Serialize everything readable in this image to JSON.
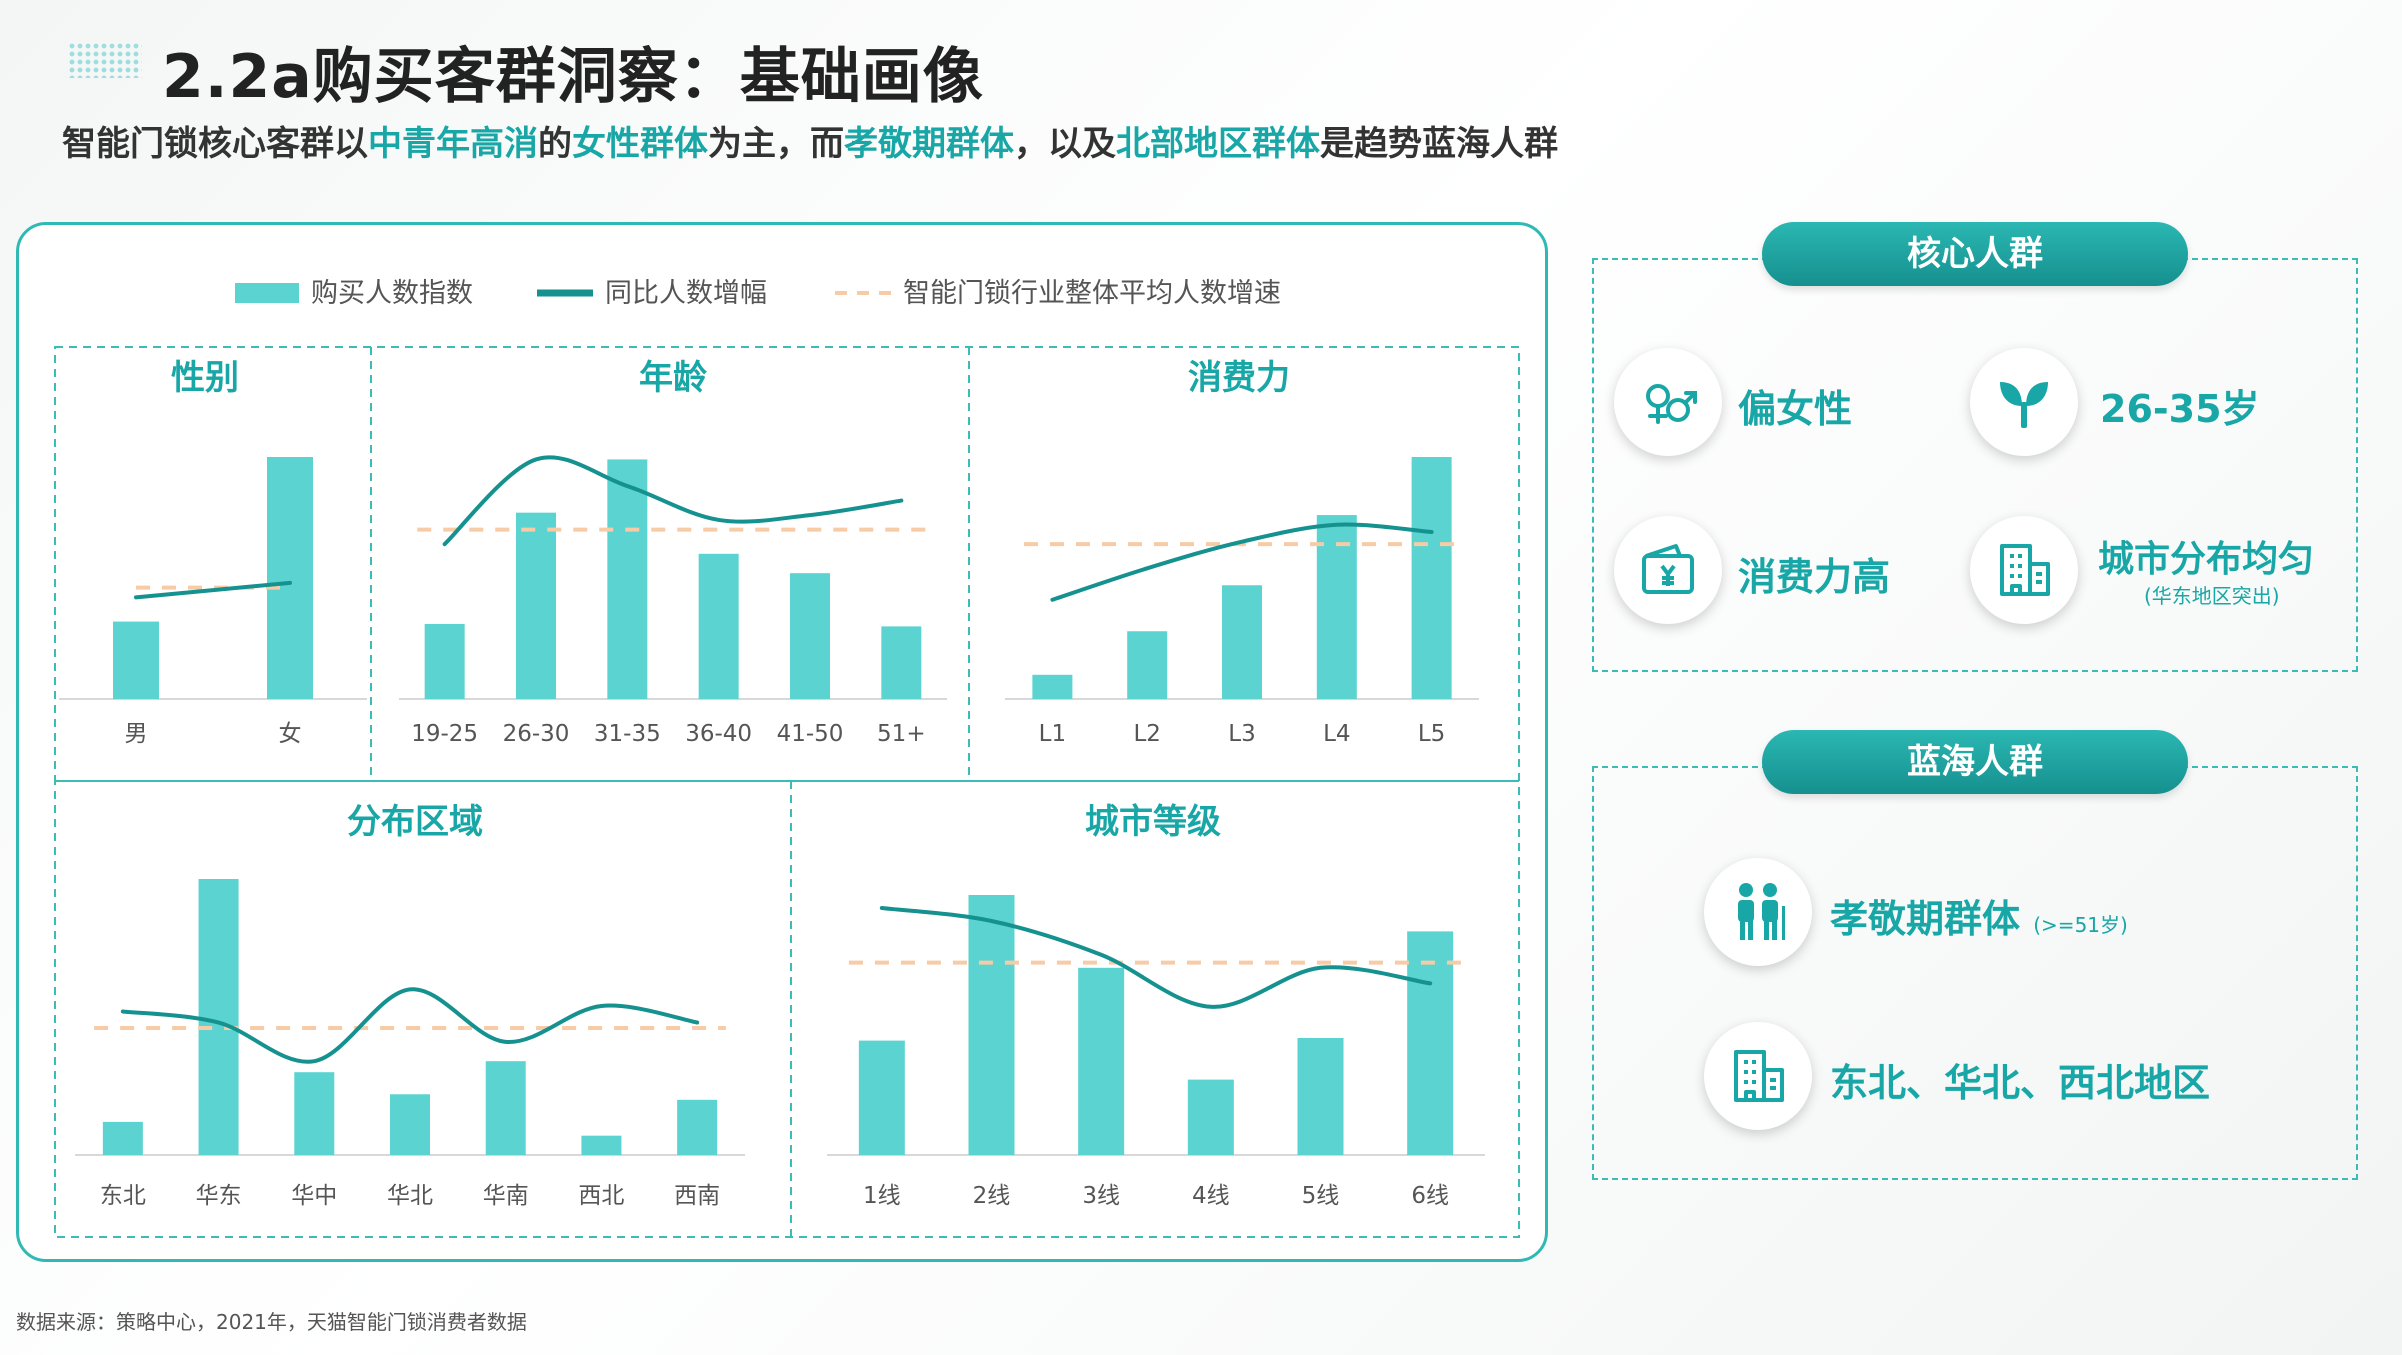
{
  "header": {
    "title": "2.2a购买客群洞察：基础画像",
    "subtitle_parts": [
      {
        "text": "智能门锁核心客群以",
        "highlight": false
      },
      {
        "text": "中青年高消",
        "highlight": true
      },
      {
        "text": "的",
        "highlight": false
      },
      {
        "text": "女性群体",
        "highlight": true
      },
      {
        "text": "为主，而",
        "highlight": false
      },
      {
        "text": "孝敬期群体",
        "highlight": true
      },
      {
        "text": "，以及",
        "highlight": false
      },
      {
        "text": "北部地区群体",
        "highlight": true
      },
      {
        "text": "是趋势蓝海人群",
        "highlight": false
      }
    ]
  },
  "colors": {
    "bar": "#5bd3d0",
    "line": "#15918f",
    "avg": "#f6cba6",
    "accent": "#18a7a6",
    "panel_border": "#2fb9b5"
  },
  "legend": [
    {
      "label": "购买人数指数",
      "kind": "bar"
    },
    {
      "label": "同比人数增幅",
      "kind": "line"
    },
    {
      "label": "智能门锁行业整体平均人数增速",
      "kind": "dash"
    }
  ],
  "chart_data": [
    {
      "type": "bar",
      "title": "性别",
      "categories": [
        "男",
        "女"
      ],
      "ylim": [
        0,
        100
      ],
      "series": [
        {
          "name": "购买人数指数",
          "values": [
            32,
            100
          ]
        },
        {
          "name": "同比人数增幅",
          "type": "line",
          "values": [
            42,
            48
          ]
        },
        {
          "name": "智能门锁行业整体平均人数增速",
          "type": "dash",
          "values": [
            46,
            46
          ]
        }
      ]
    },
    {
      "type": "bar",
      "title": "年龄",
      "categories": [
        "19-25",
        "26-30",
        "31-35",
        "36-40",
        "41-50",
        "51+"
      ],
      "ylim": [
        0,
        100
      ],
      "series": [
        {
          "name": "购买人数指数",
          "values": [
            31,
            77,
            99,
            60,
            52,
            30
          ]
        },
        {
          "name": "同比人数增幅",
          "type": "line",
          "values": [
            64,
            99,
            88,
            74,
            76,
            82
          ]
        },
        {
          "name": "智能门锁行业整体平均人数增速",
          "type": "dash",
          "values": [
            70,
            70,
            70,
            70,
            70,
            70
          ]
        }
      ]
    },
    {
      "type": "bar",
      "title": "消费力",
      "categories": [
        "L1",
        "L2",
        "L3",
        "L4",
        "L5"
      ],
      "ylim": [
        0,
        100
      ],
      "series": [
        {
          "name": "购买人数指数",
          "values": [
            10,
            28,
            47,
            76,
            100
          ]
        },
        {
          "name": "同比人数增幅",
          "type": "line",
          "values": [
            41,
            54,
            65,
            72,
            69
          ]
        },
        {
          "name": "智能门锁行业整体平均人数增速",
          "type": "dash",
          "values": [
            64,
            64,
            64,
            64,
            64
          ]
        }
      ]
    },
    {
      "type": "bar",
      "title": "分布区域",
      "categories": [
        "东北",
        "华东",
        "华中",
        "华北",
        "华南",
        "西北",
        "西南"
      ],
      "ylim": [
        0,
        100
      ],
      "series": [
        {
          "name": "购买人数指数",
          "values": [
            12,
            100,
            30,
            22,
            34,
            7,
            20
          ]
        },
        {
          "name": "同比人数增幅",
          "type": "line",
          "values": [
            52,
            48,
            34,
            60,
            41,
            54,
            48
          ]
        },
        {
          "name": "智能门锁行业整体平均人数增速",
          "type": "dash",
          "values": [
            46,
            46,
            46,
            46,
            46,
            46,
            46
          ]
        }
      ]
    },
    {
      "type": "bar",
      "title": "城市等级",
      "categories": [
        "1线",
        "2线",
        "3线",
        "4线",
        "5线",
        "6线"
      ],
      "ylim": [
        0,
        100
      ],
      "series": [
        {
          "name": "购买人数指数",
          "values": [
            44,
            100,
            72,
            29,
            45,
            86
          ]
        },
        {
          "name": "同比人数增幅",
          "type": "line",
          "values": [
            95,
            90,
            77,
            57,
            72,
            66
          ]
        },
        {
          "name": "智能门锁行业整体平均人数增速",
          "type": "dash",
          "values": [
            74,
            74,
            74,
            74,
            74,
            74
          ]
        }
      ]
    }
  ],
  "core": {
    "title": "核心人群",
    "items": [
      {
        "icon": "gender-icon",
        "label": "偏女性"
      },
      {
        "icon": "sprout-icon",
        "label": "26-35岁"
      },
      {
        "icon": "wallet-icon",
        "label": "消费力高"
      },
      {
        "icon": "building-icon",
        "label": "城市分布均匀",
        "note": "(华东地区突出)"
      }
    ]
  },
  "bluesea": {
    "title": "蓝海人群",
    "items": [
      {
        "icon": "elderly-icon",
        "label": "孝敬期群体",
        "note": "(>=51岁)"
      },
      {
        "icon": "building-icon",
        "label": "东北、华北、西北地区"
      }
    ]
  },
  "source": "数据来源：策略中心，2021年，天猫智能门锁消费者数据"
}
